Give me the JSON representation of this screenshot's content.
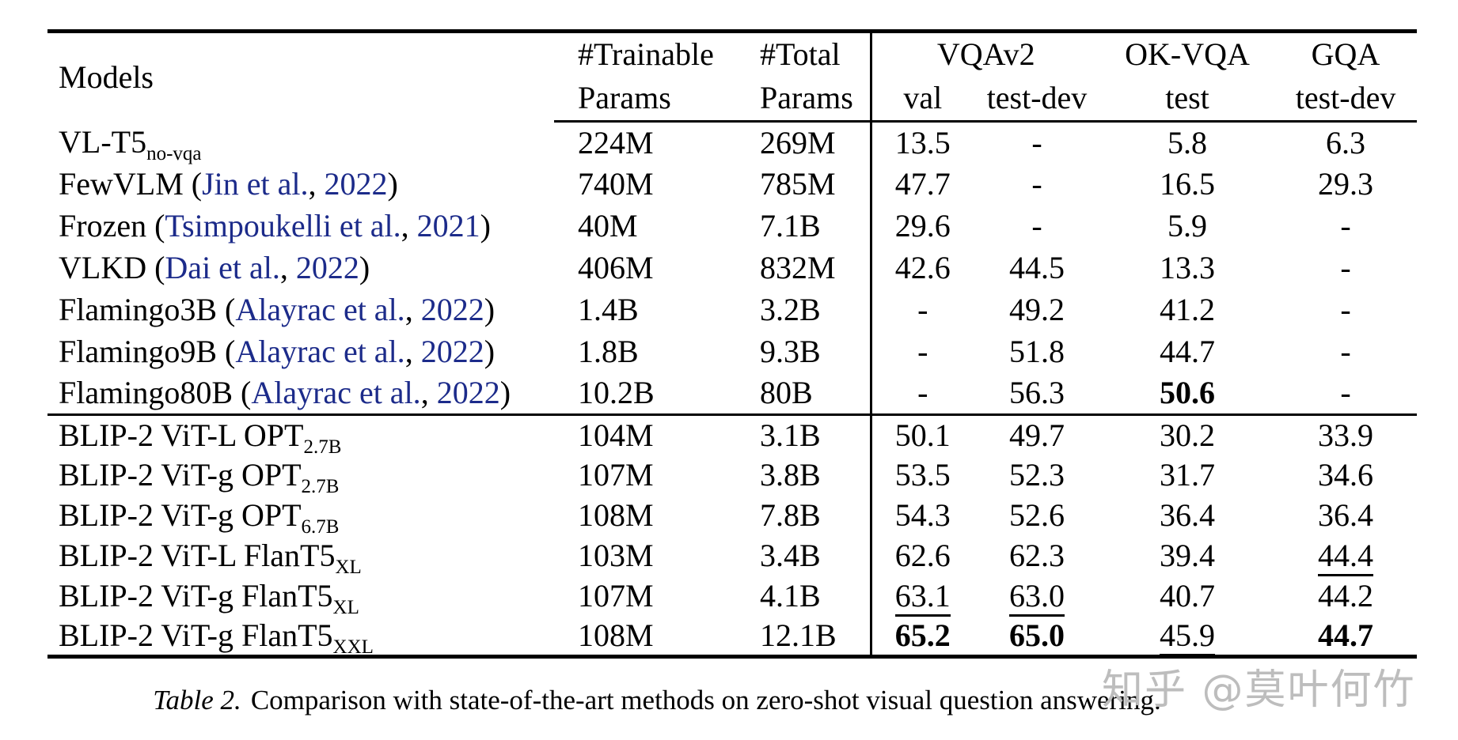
{
  "header": {
    "models": "Models",
    "trainable_line1": "#Trainable",
    "trainable_line2": "Params",
    "total_line1": "#Total",
    "total_line2": "Params",
    "vqav2": "VQAv2",
    "vqav2_val": "val",
    "vqav2_testdev": "test-dev",
    "okvqa": "OK-VQA",
    "okvqa_test": "test",
    "gqa": "GQA",
    "gqa_testdev": "test-dev"
  },
  "groups": [
    {
      "rows": [
        {
          "model": {
            "name": "VL-T5",
            "sub": "no-vqa",
            "cite": null
          },
          "cells": [
            {
              "v": "224M"
            },
            {
              "v": "269M"
            },
            {
              "v": "13.5"
            },
            {
              "v": "-"
            },
            {
              "v": "5.8"
            },
            {
              "v": "6.3"
            }
          ]
        },
        {
          "model": {
            "name": "FewVLM",
            "sub": null,
            "cite": {
              "authors": "Jin et al.",
              "year": "2022"
            }
          },
          "cells": [
            {
              "v": "740M"
            },
            {
              "v": "785M"
            },
            {
              "v": "47.7"
            },
            {
              "v": "-"
            },
            {
              "v": "16.5"
            },
            {
              "v": "29.3"
            }
          ]
        },
        {
          "model": {
            "name": "Frozen",
            "sub": null,
            "cite": {
              "authors": "Tsimpoukelli et al.",
              "year": "2021"
            }
          },
          "cells": [
            {
              "v": "40M"
            },
            {
              "v": "7.1B"
            },
            {
              "v": "29.6"
            },
            {
              "v": "-"
            },
            {
              "v": "5.9"
            },
            {
              "v": "-"
            }
          ]
        },
        {
          "model": {
            "name": "VLKD",
            "sub": null,
            "cite": {
              "authors": "Dai et al.",
              "year": "2022"
            }
          },
          "cells": [
            {
              "v": "406M"
            },
            {
              "v": "832M"
            },
            {
              "v": "42.6"
            },
            {
              "v": "44.5"
            },
            {
              "v": "13.3"
            },
            {
              "v": "-"
            }
          ]
        },
        {
          "model": {
            "name": "Flamingo3B",
            "sub": null,
            "cite": {
              "authors": "Alayrac et al.",
              "year": "2022"
            }
          },
          "cells": [
            {
              "v": "1.4B"
            },
            {
              "v": "3.2B"
            },
            {
              "v": "-"
            },
            {
              "v": "49.2"
            },
            {
              "v": "41.2"
            },
            {
              "v": "-"
            }
          ]
        },
        {
          "model": {
            "name": "Flamingo9B",
            "sub": null,
            "cite": {
              "authors": "Alayrac et al.",
              "year": "2022"
            }
          },
          "cells": [
            {
              "v": "1.8B"
            },
            {
              "v": "9.3B"
            },
            {
              "v": "-"
            },
            {
              "v": "51.8"
            },
            {
              "v": "44.7"
            },
            {
              "v": "-"
            }
          ]
        },
        {
          "model": {
            "name": "Flamingo80B",
            "sub": null,
            "cite": {
              "authors": "Alayrac et al.",
              "year": "2022"
            }
          },
          "cells": [
            {
              "v": "10.2B"
            },
            {
              "v": "80B"
            },
            {
              "v": "-"
            },
            {
              "v": "56.3"
            },
            {
              "v": "50.6",
              "style": "bold"
            },
            {
              "v": "-"
            }
          ]
        }
      ]
    },
    {
      "rows": [
        {
          "model": {
            "name": "BLIP-2 ViT-L OPT",
            "sub": "2.7B",
            "cite": null
          },
          "cells": [
            {
              "v": "104M"
            },
            {
              "v": "3.1B"
            },
            {
              "v": "50.1"
            },
            {
              "v": "49.7"
            },
            {
              "v": "30.2"
            },
            {
              "v": "33.9"
            }
          ]
        },
        {
          "model": {
            "name": "BLIP-2 ViT-g OPT",
            "sub": "2.7B",
            "cite": null
          },
          "cells": [
            {
              "v": "107M"
            },
            {
              "v": "3.8B"
            },
            {
              "v": "53.5"
            },
            {
              "v": "52.3"
            },
            {
              "v": "31.7"
            },
            {
              "v": "34.6"
            }
          ]
        },
        {
          "model": {
            "name": "BLIP-2 ViT-g OPT",
            "sub": "6.7B",
            "cite": null
          },
          "cells": [
            {
              "v": "108M"
            },
            {
              "v": "7.8B"
            },
            {
              "v": "54.3"
            },
            {
              "v": "52.6"
            },
            {
              "v": "36.4"
            },
            {
              "v": "36.4"
            }
          ]
        },
        {
          "model": {
            "name": "BLIP-2 ViT-L FlanT5",
            "sub": "XL",
            "cite": null
          },
          "cells": [
            {
              "v": "103M"
            },
            {
              "v": "3.4B"
            },
            {
              "v": "62.6"
            },
            {
              "v": "62.3"
            },
            {
              "v": "39.4"
            },
            {
              "v": "44.4",
              "style": "underline"
            }
          ]
        },
        {
          "model": {
            "name": "BLIP-2 ViT-g FlanT5",
            "sub": "XL",
            "cite": null
          },
          "cells": [
            {
              "v": "107M"
            },
            {
              "v": "4.1B"
            },
            {
              "v": "63.1",
              "style": "underline"
            },
            {
              "v": "63.0",
              "style": "underline"
            },
            {
              "v": "40.7"
            },
            {
              "v": "44.2"
            }
          ]
        },
        {
          "model": {
            "name": "BLIP-2 ViT-g FlanT5",
            "sub": "XXL",
            "cite": null
          },
          "cells": [
            {
              "v": "108M"
            },
            {
              "v": "12.1B"
            },
            {
              "v": "65.2",
              "style": "bold"
            },
            {
              "v": "65.0",
              "style": "bold"
            },
            {
              "v": "45.9",
              "style": "underline"
            },
            {
              "v": "44.7",
              "style": "bold"
            }
          ]
        }
      ]
    }
  ],
  "caption": {
    "label": "Table 2.",
    "text": "Comparison with state-of-the-art methods on zero-shot visual question answering."
  },
  "watermark": {
    "text": "知乎 @莫叶何竹"
  },
  "colors": {
    "citation_blue": "#1c2b8a",
    "rule": "#000000",
    "watermark_gray": "#bdbdbd"
  }
}
